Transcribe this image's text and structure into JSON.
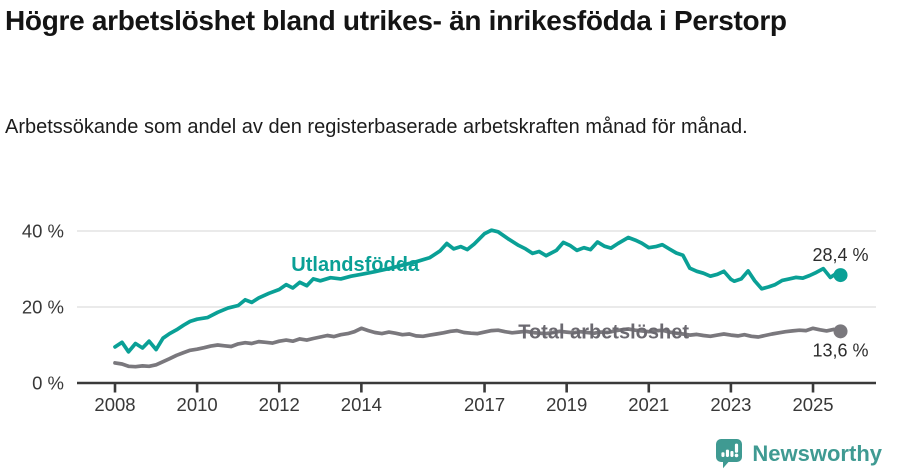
{
  "header": {
    "title": "Högre arbetslöshet bland utrikes- än inrikesfödda i Perstorp",
    "subtitle": "Arbetssökande som andel av den registerbaserade arbetskraften månad för månad."
  },
  "footer": {
    "brand": "Newsworthy",
    "brand_color": "#3f9a92",
    "logo_icon": "newsworthy-speech-bubble-bar-chart-icon"
  },
  "chart_data": {
    "type": "line",
    "title": "Högre arbetslöshet bland utrikes- än inrikesfödda i Perstorp",
    "subtitle": "Arbetssökande som andel av den registerbaserade arbetskraften månad för månad.",
    "x_unit": "decimal_year",
    "x_range": [
      2007.85,
      2026.4
    ],
    "y_range": [
      0,
      42
    ],
    "grid": "horizontal-only",
    "legend_position": "inline-labels-on-lines",
    "x_axis": {
      "tick_years": [
        2008,
        2010,
        2012,
        2014,
        2017,
        2019,
        2021,
        2023,
        2025
      ],
      "tick_labels": [
        "2008",
        "2010",
        "2012",
        "2014",
        "2017",
        "2019",
        "2021",
        "2023",
        "2025"
      ],
      "axis_color": "#3a3a3a"
    },
    "y_axis": {
      "ticks": [
        {
          "value": 0,
          "label": "0 %"
        },
        {
          "value": 20,
          "label": "20 %"
        },
        {
          "value": 40,
          "label": "40 %"
        }
      ],
      "gridline_color": "#e3e3e3"
    },
    "series": [
      {
        "name": "Total arbetslöshet",
        "color": "#7a787d",
        "label_color": "#6b6970",
        "label_at": {
          "x": 2019.9,
          "y": 13.6
        },
        "end_label": "13,6 %",
        "end_label_position": "below",
        "last_value": 13.6,
        "points": [
          [
            2008.0,
            5.3
          ],
          [
            2008.17,
            5.0
          ],
          [
            2008.33,
            4.4
          ],
          [
            2008.5,
            4.3
          ],
          [
            2008.67,
            4.5
          ],
          [
            2008.83,
            4.4
          ],
          [
            2009.0,
            4.8
          ],
          [
            2009.17,
            5.6
          ],
          [
            2009.33,
            6.4
          ],
          [
            2009.5,
            7.3
          ],
          [
            2009.67,
            8.0
          ],
          [
            2009.83,
            8.6
          ],
          [
            2010.0,
            8.9
          ],
          [
            2010.17,
            9.3
          ],
          [
            2010.33,
            9.7
          ],
          [
            2010.5,
            10.0
          ],
          [
            2010.67,
            9.8
          ],
          [
            2010.83,
            9.6
          ],
          [
            2011.0,
            10.3
          ],
          [
            2011.17,
            10.6
          ],
          [
            2011.33,
            10.4
          ],
          [
            2011.5,
            10.9
          ],
          [
            2011.67,
            10.7
          ],
          [
            2011.83,
            10.5
          ],
          [
            2012.0,
            11.0
          ],
          [
            2012.17,
            11.3
          ],
          [
            2012.33,
            11.0
          ],
          [
            2012.5,
            11.6
          ],
          [
            2012.67,
            11.3
          ],
          [
            2012.83,
            11.7
          ],
          [
            2013.0,
            12.1
          ],
          [
            2013.17,
            12.5
          ],
          [
            2013.33,
            12.2
          ],
          [
            2013.5,
            12.7
          ],
          [
            2013.67,
            13.0
          ],
          [
            2013.83,
            13.5
          ],
          [
            2014.0,
            14.4
          ],
          [
            2014.17,
            13.8
          ],
          [
            2014.33,
            13.3
          ],
          [
            2014.5,
            13.0
          ],
          [
            2014.67,
            13.4
          ],
          [
            2014.83,
            13.1
          ],
          [
            2015.0,
            12.7
          ],
          [
            2015.17,
            12.9
          ],
          [
            2015.33,
            12.4
          ],
          [
            2015.5,
            12.3
          ],
          [
            2015.67,
            12.6
          ],
          [
            2015.83,
            12.9
          ],
          [
            2016.0,
            13.2
          ],
          [
            2016.17,
            13.6
          ],
          [
            2016.33,
            13.8
          ],
          [
            2016.5,
            13.3
          ],
          [
            2016.67,
            13.1
          ],
          [
            2016.83,
            13.0
          ],
          [
            2017.0,
            13.4
          ],
          [
            2017.17,
            13.8
          ],
          [
            2017.33,
            13.9
          ],
          [
            2017.5,
            13.5
          ],
          [
            2017.67,
            13.2
          ],
          [
            2017.83,
            13.4
          ],
          [
            2018.0,
            13.6
          ],
          [
            2018.17,
            13.3
          ],
          [
            2018.33,
            13.1
          ],
          [
            2018.5,
            13.0
          ],
          [
            2018.67,
            13.3
          ],
          [
            2018.83,
            13.6
          ],
          [
            2019.0,
            13.4
          ],
          [
            2019.17,
            13.2
          ],
          [
            2019.33,
            13.5
          ],
          [
            2019.5,
            13.3
          ],
          [
            2019.67,
            13.1
          ],
          [
            2019.83,
            13.4
          ],
          [
            2020.0,
            13.3
          ],
          [
            2020.17,
            13.7
          ],
          [
            2020.33,
            14.0
          ],
          [
            2020.5,
            14.2
          ],
          [
            2020.67,
            13.9
          ],
          [
            2020.83,
            13.7
          ],
          [
            2021.0,
            13.5
          ],
          [
            2021.17,
            13.7
          ],
          [
            2021.33,
            13.9
          ],
          [
            2021.5,
            13.4
          ],
          [
            2021.67,
            13.1
          ],
          [
            2021.83,
            12.9
          ],
          [
            2022.0,
            12.6
          ],
          [
            2022.17,
            12.8
          ],
          [
            2022.33,
            12.5
          ],
          [
            2022.5,
            12.3
          ],
          [
            2022.67,
            12.6
          ],
          [
            2022.83,
            12.9
          ],
          [
            2023.0,
            12.6
          ],
          [
            2023.17,
            12.4
          ],
          [
            2023.33,
            12.7
          ],
          [
            2023.5,
            12.3
          ],
          [
            2023.67,
            12.1
          ],
          [
            2023.83,
            12.5
          ],
          [
            2024.0,
            12.9
          ],
          [
            2024.17,
            13.2
          ],
          [
            2024.33,
            13.5
          ],
          [
            2024.5,
            13.7
          ],
          [
            2024.67,
            13.9
          ],
          [
            2024.83,
            13.8
          ],
          [
            2025.0,
            14.4
          ],
          [
            2025.17,
            14.0
          ],
          [
            2025.33,
            13.7
          ],
          [
            2025.5,
            14.1
          ],
          [
            2025.67,
            13.6
          ]
        ]
      },
      {
        "name": "Utlandsfödda",
        "color": "#0aa096",
        "label_color": "#0aa096",
        "label_at": {
          "x": 2013.85,
          "y": 31.3
        },
        "end_label": "28,4 %",
        "end_label_position": "above",
        "last_value": 28.4,
        "points": [
          [
            2008.0,
            9.5
          ],
          [
            2008.17,
            10.7
          ],
          [
            2008.33,
            8.2
          ],
          [
            2008.5,
            10.4
          ],
          [
            2008.67,
            9.2
          ],
          [
            2008.83,
            11.0
          ],
          [
            2009.0,
            8.8
          ],
          [
            2009.17,
            11.8
          ],
          [
            2009.33,
            13.0
          ],
          [
            2009.5,
            14.0
          ],
          [
            2009.67,
            15.2
          ],
          [
            2009.83,
            16.2
          ],
          [
            2010.0,
            16.8
          ],
          [
            2010.25,
            17.2
          ],
          [
            2010.5,
            18.6
          ],
          [
            2010.75,
            19.7
          ],
          [
            2011.0,
            20.4
          ],
          [
            2011.17,
            21.9
          ],
          [
            2011.33,
            21.2
          ],
          [
            2011.5,
            22.4
          ],
          [
            2011.75,
            23.6
          ],
          [
            2012.0,
            24.6
          ],
          [
            2012.17,
            25.9
          ],
          [
            2012.33,
            25.0
          ],
          [
            2012.5,
            26.5
          ],
          [
            2012.67,
            25.6
          ],
          [
            2012.83,
            27.4
          ],
          [
            2013.0,
            26.9
          ],
          [
            2013.25,
            27.7
          ],
          [
            2013.5,
            27.4
          ],
          [
            2013.75,
            28.1
          ],
          [
            2014.0,
            28.6
          ],
          [
            2014.33,
            29.3
          ],
          [
            2014.67,
            30.1
          ],
          [
            2015.0,
            31.0
          ],
          [
            2015.33,
            31.9
          ],
          [
            2015.67,
            33.0
          ],
          [
            2015.92,
            34.8
          ],
          [
            2016.08,
            36.7
          ],
          [
            2016.25,
            35.3
          ],
          [
            2016.42,
            35.9
          ],
          [
            2016.58,
            35.1
          ],
          [
            2016.75,
            36.6
          ],
          [
            2017.0,
            39.3
          ],
          [
            2017.17,
            40.2
          ],
          [
            2017.33,
            39.8
          ],
          [
            2017.58,
            37.9
          ],
          [
            2017.83,
            36.2
          ],
          [
            2018.0,
            35.3
          ],
          [
            2018.17,
            34.1
          ],
          [
            2018.33,
            34.6
          ],
          [
            2018.5,
            33.5
          ],
          [
            2018.75,
            34.9
          ],
          [
            2018.92,
            37.0
          ],
          [
            2019.08,
            36.2
          ],
          [
            2019.25,
            34.9
          ],
          [
            2019.42,
            35.6
          ],
          [
            2019.58,
            35.1
          ],
          [
            2019.75,
            37.1
          ],
          [
            2019.92,
            36.0
          ],
          [
            2020.08,
            35.5
          ],
          [
            2020.25,
            36.7
          ],
          [
            2020.5,
            38.3
          ],
          [
            2020.67,
            37.6
          ],
          [
            2020.83,
            36.8
          ],
          [
            2021.0,
            35.6
          ],
          [
            2021.17,
            35.9
          ],
          [
            2021.33,
            36.4
          ],
          [
            2021.5,
            35.3
          ],
          [
            2021.67,
            34.2
          ],
          [
            2021.83,
            33.6
          ],
          [
            2022.0,
            30.2
          ],
          [
            2022.17,
            29.4
          ],
          [
            2022.33,
            28.9
          ],
          [
            2022.5,
            28.1
          ],
          [
            2022.67,
            28.6
          ],
          [
            2022.83,
            29.4
          ],
          [
            2023.0,
            27.3
          ],
          [
            2023.08,
            26.8
          ],
          [
            2023.25,
            27.4
          ],
          [
            2023.42,
            29.5
          ],
          [
            2023.58,
            26.9
          ],
          [
            2023.75,
            24.8
          ],
          [
            2023.92,
            25.3
          ],
          [
            2024.08,
            25.9
          ],
          [
            2024.25,
            27.0
          ],
          [
            2024.42,
            27.4
          ],
          [
            2024.58,
            27.8
          ],
          [
            2024.75,
            27.6
          ],
          [
            2024.92,
            28.3
          ],
          [
            2025.08,
            29.1
          ],
          [
            2025.25,
            30.1
          ],
          [
            2025.42,
            27.8
          ],
          [
            2025.58,
            28.9
          ],
          [
            2025.67,
            28.4
          ]
        ]
      }
    ]
  }
}
